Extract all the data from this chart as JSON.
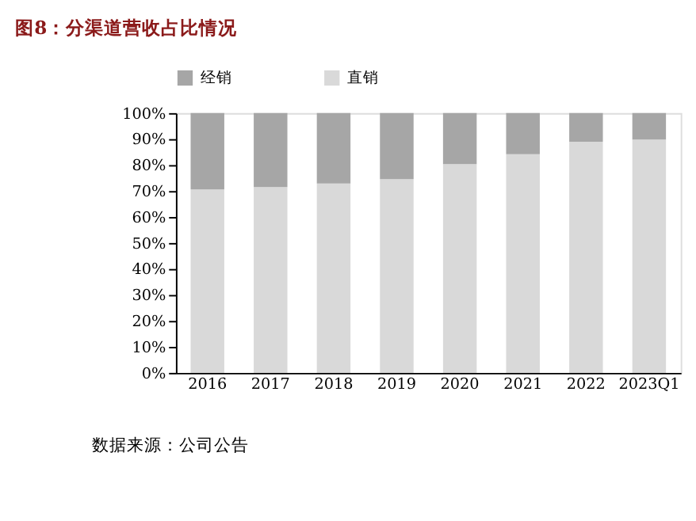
{
  "chart_data": {
    "type": "bar",
    "title": "图8：分渠道营收占比情况",
    "categories": [
      "2016",
      "2017",
      "2018",
      "2019",
      "2020",
      "2021",
      "2022",
      "2023Q1"
    ],
    "series": [
      {
        "name": "直销",
        "color": "#d9d9d9",
        "values": [
          70.6,
          71.5,
          72.9,
          74.6,
          80.4,
          84.2,
          89.0,
          89.8
        ]
      },
      {
        "name": "经销",
        "color": "#a6a6a6",
        "values": [
          29.4,
          28.5,
          27.1,
          25.4,
          19.6,
          15.8,
          11.0,
          10.2
        ]
      }
    ],
    "stacked": true,
    "ylim": [
      0,
      100
    ],
    "yticks": [
      {
        "value": 0,
        "label": "0%"
      },
      {
        "value": 10,
        "label": "10%"
      },
      {
        "value": 20,
        "label": "20%"
      },
      {
        "value": 30,
        "label": "30%"
      },
      {
        "value": 40,
        "label": "40%"
      },
      {
        "value": 50,
        "label": "50%"
      },
      {
        "value": 60,
        "label": "60%"
      },
      {
        "value": 70,
        "label": "70%"
      },
      {
        "value": 80,
        "label": "80%"
      },
      {
        "value": 90,
        "label": "90%"
      },
      {
        "value": 100,
        "label": "100%"
      }
    ],
    "legend": "top",
    "grid": false,
    "annotations": [
      "数据来源：公司公告"
    ]
  }
}
